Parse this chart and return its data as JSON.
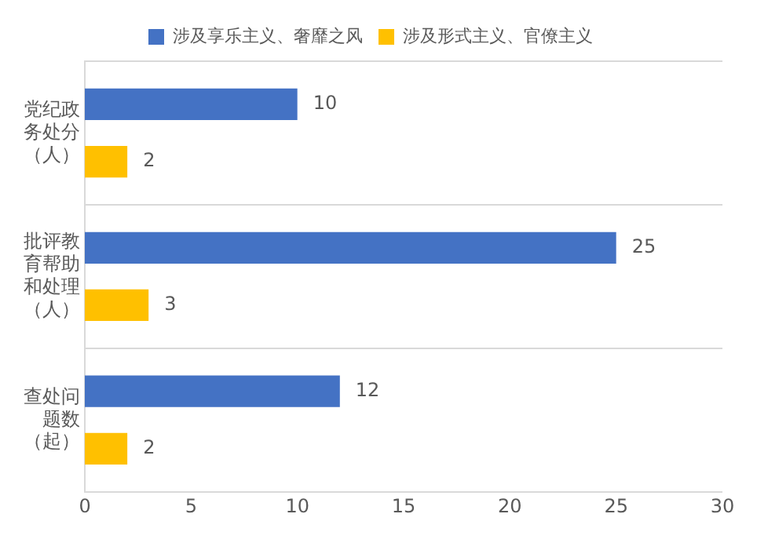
{
  "chart_data": {
    "type": "bar",
    "orientation": "horizontal",
    "categories": [
      "党纪政务处分（人）",
      "批评教育帮助和处理（人）",
      "查处问题数（起）"
    ],
    "series": [
      {
        "name": "涉及享乐主义、奢靡之风",
        "color": "#4472c4",
        "values": [
          10,
          25,
          12
        ]
      },
      {
        "name": "涉及形式主义、官僚主义",
        "color": "#ffc000",
        "values": [
          2,
          3,
          2
        ]
      }
    ],
    "xlim": [
      0,
      30
    ],
    "xticks": [
      0,
      5,
      10,
      15,
      20,
      25,
      30
    ],
    "grid": "y",
    "legend": "top",
    "data_labels": true
  }
}
